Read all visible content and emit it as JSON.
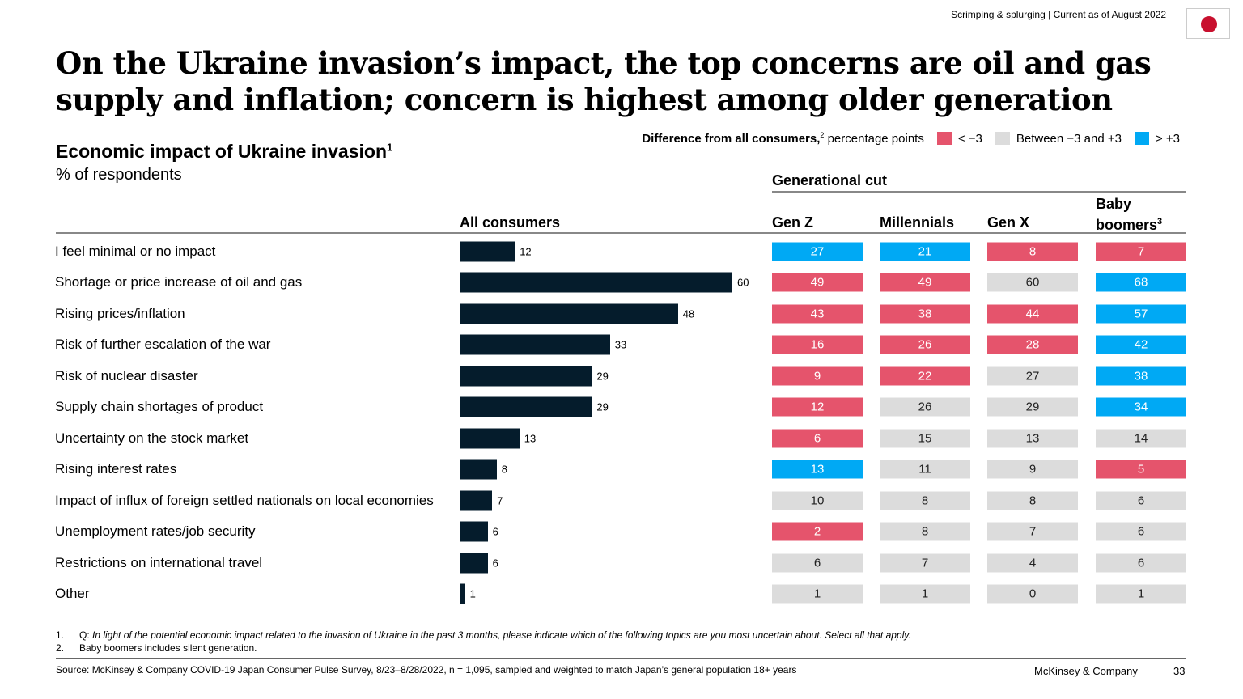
{
  "header": {
    "top_note": "Scrimping & splurging | Current as of August 2022",
    "flag": "japan-flag-icon",
    "title": "On the Ukraine invasion’s impact, the top concerns are oil and gas supply and inflation; concern is highest among older generation"
  },
  "chart_data": {
    "type": "table",
    "title": "Economic impact of Ukraine invasion",
    "title_sup": "1",
    "unit": "% of respondents",
    "legend": {
      "title": "Difference from all consumers,",
      "title_sup": "2",
      "title_suffix": " percentage points",
      "items": [
        {
          "key": "neg",
          "label": "< −3",
          "color": "#e5546c"
        },
        {
          "key": "neu",
          "label": "Between −3 and +3",
          "color": "#dcdcdc"
        },
        {
          "key": "pos",
          "label": "> +3",
          "color": "#00a9f4"
        }
      ]
    },
    "bar_color": "#051c2c",
    "all_header": "All consumers",
    "group_header": "Generational cut",
    "gen_headers": [
      "Gen Z",
      "Millennials",
      "Gen X",
      "Baby boomers"
    ],
    "gen_header_sup": "3",
    "rows": [
      {
        "label": "I feel minimal or no impact",
        "all": 12,
        "gen": [
          27,
          21,
          8,
          7
        ],
        "cat": [
          "pos",
          "pos",
          "neg",
          "neg"
        ]
      },
      {
        "label": "Shortage or price increase of oil and gas",
        "all": 60,
        "gen": [
          49,
          49,
          60,
          68
        ],
        "cat": [
          "neg",
          "neg",
          "neu",
          "pos"
        ]
      },
      {
        "label": "Rising prices/inflation",
        "all": 48,
        "gen": [
          43,
          38,
          44,
          57
        ],
        "cat": [
          "neg",
          "neg",
          "neg",
          "pos"
        ]
      },
      {
        "label": "Risk of further escalation of the war",
        "all": 33,
        "gen": [
          16,
          26,
          28,
          42
        ],
        "cat": [
          "neg",
          "neg",
          "neg",
          "pos"
        ]
      },
      {
        "label": "Risk of nuclear disaster",
        "all": 29,
        "gen": [
          9,
          22,
          27,
          38
        ],
        "cat": [
          "neg",
          "neg",
          "neu",
          "pos"
        ]
      },
      {
        "label": "Supply chain shortages of product",
        "all": 29,
        "gen": [
          12,
          26,
          29,
          34
        ],
        "cat": [
          "neg",
          "neu",
          "neu",
          "pos"
        ]
      },
      {
        "label": "Uncertainty on the stock market",
        "all": 13,
        "gen": [
          6,
          15,
          13,
          14
        ],
        "cat": [
          "neg",
          "neu",
          "neu",
          "neu"
        ]
      },
      {
        "label": "Rising interest rates",
        "all": 8,
        "gen": [
          13,
          11,
          9,
          5
        ],
        "cat": [
          "pos",
          "neu",
          "neu",
          "neg"
        ]
      },
      {
        "label": "Impact of influx of foreign settled nationals on local economies",
        "all": 7,
        "gen": [
          10,
          8,
          8,
          6
        ],
        "cat": [
          "neu",
          "neu",
          "neu",
          "neu"
        ]
      },
      {
        "label": "Unemployment rates/job security",
        "all": 6,
        "gen": [
          2,
          8,
          7,
          6
        ],
        "cat": [
          "neg",
          "neu",
          "neu",
          "neu"
        ]
      },
      {
        "label": "Restrictions on international travel",
        "all": 6,
        "gen": [
          6,
          7,
          4,
          6
        ],
        "cat": [
          "neu",
          "neu",
          "neu",
          "neu"
        ]
      },
      {
        "label": "Other",
        "all": 1,
        "gen": [
          1,
          1,
          0,
          1
        ],
        "cat": [
          "neu",
          "neu",
          "neu",
          "neu"
        ]
      }
    ]
  },
  "footnotes": {
    "n1": "1.",
    "q": "Q:",
    "f1": "In light of the potential economic impact related to the invasion of Ukraine in the past 3 months, please indicate which of the following topics are you most uncertain about. Select all that apply.",
    "n2": "2.",
    "f2": "Baby boomers includes silent generation."
  },
  "footer": {
    "source": "Source: McKinsey & Company COVID-19 Japan Consumer Pulse Survey, 8/23–8/28/2022, n = 1,095, sampled and weighted to match Japan’s general population 18+ years",
    "brand": "McKinsey & Company",
    "page": "33"
  }
}
